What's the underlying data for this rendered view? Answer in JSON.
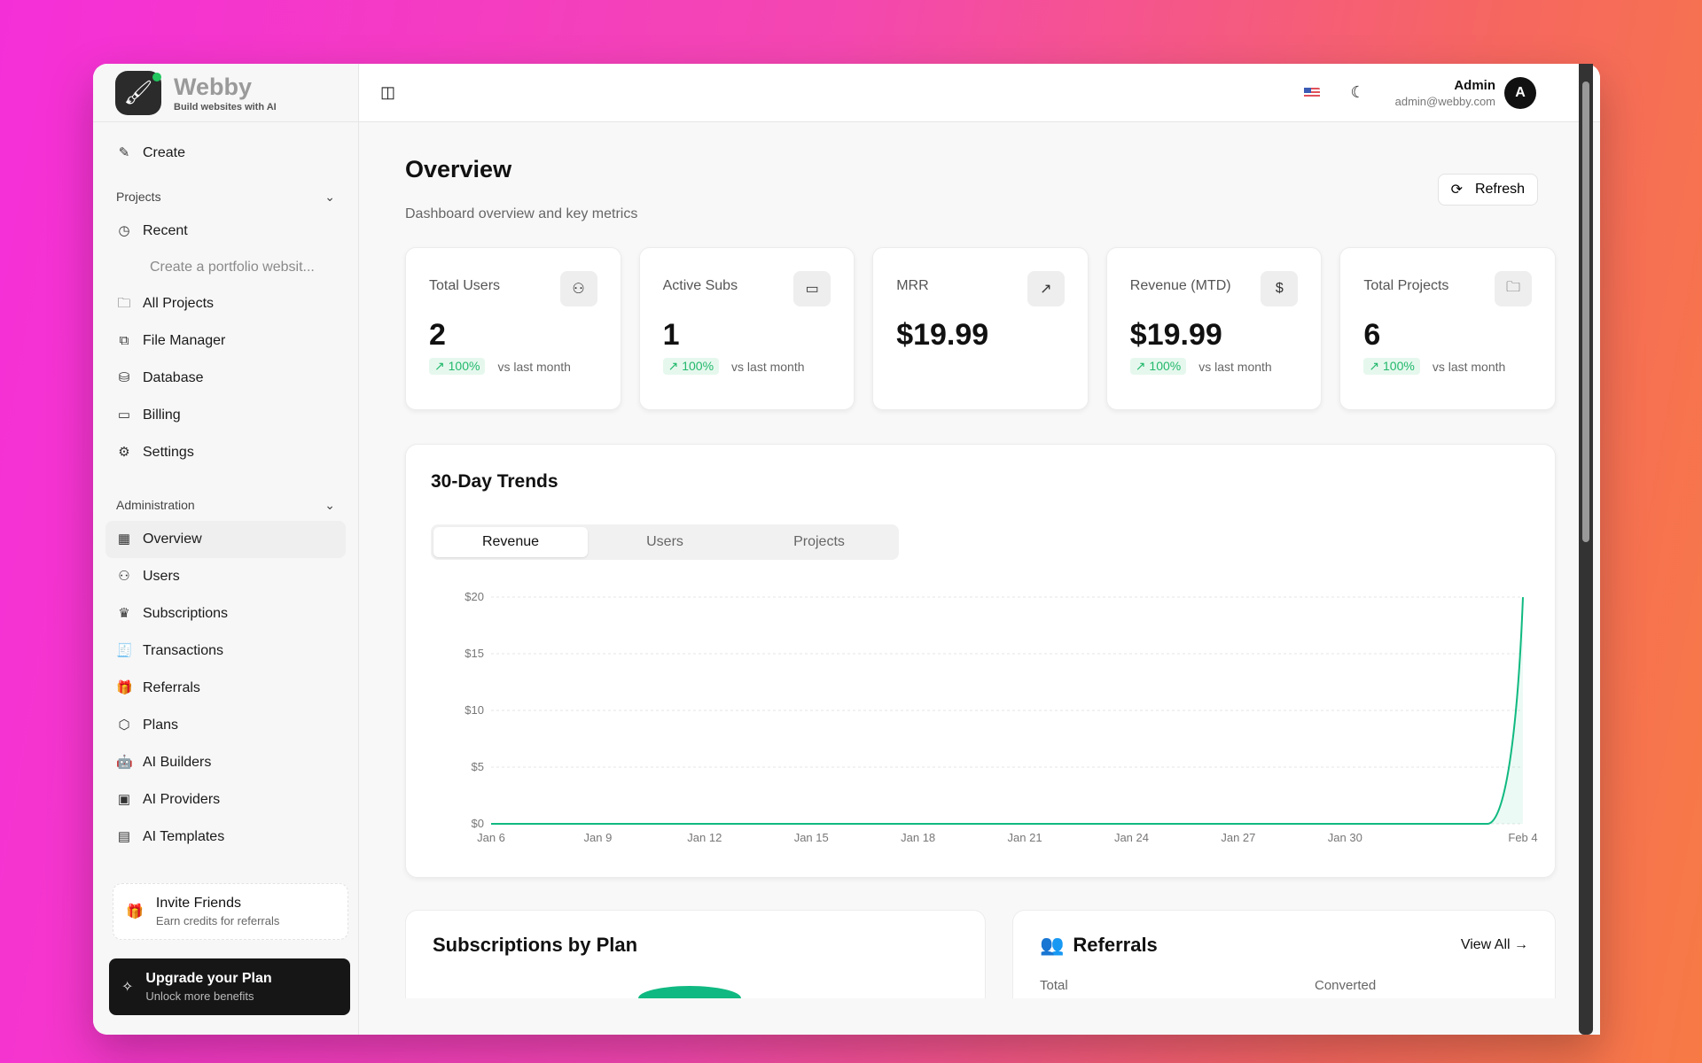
{
  "brand": {
    "name": "Webby",
    "tagline": "Build websites with AI"
  },
  "sidebar": {
    "create": "Create",
    "projects_section": "Projects",
    "recent": "Recent",
    "recent_items": [
      "Create a portfolio websit..."
    ],
    "project_items": [
      {
        "label": "All Projects",
        "icon": "folder-open"
      },
      {
        "label": "File Manager",
        "icon": "files"
      },
      {
        "label": "Database",
        "icon": "database"
      },
      {
        "label": "Billing",
        "icon": "credit-card"
      },
      {
        "label": "Settings",
        "icon": "gear"
      }
    ],
    "admin_section": "Administration",
    "admin_items": [
      {
        "label": "Overview",
        "icon": "grid",
        "active": true
      },
      {
        "label": "Users",
        "icon": "users"
      },
      {
        "label": "Subscriptions",
        "icon": "crown"
      },
      {
        "label": "Transactions",
        "icon": "receipt"
      },
      {
        "label": "Referrals",
        "icon": "gift"
      },
      {
        "label": "Plans",
        "icon": "package"
      },
      {
        "label": "AI Builders",
        "icon": "bot"
      },
      {
        "label": "AI Providers",
        "icon": "cpu"
      },
      {
        "label": "AI Templates",
        "icon": "layout-template"
      }
    ],
    "invite": {
      "title": "Invite Friends",
      "subtitle": "Earn credits for referrals"
    },
    "upgrade": {
      "title": "Upgrade your Plan",
      "subtitle": "Unlock more benefits"
    }
  },
  "header": {
    "user_name": "Admin",
    "user_email": "admin@webby.com",
    "avatar": "A"
  },
  "page": {
    "title": "Overview",
    "description": "Dashboard overview and key metrics",
    "refresh": "Refresh"
  },
  "stats": [
    {
      "label": "Total Users",
      "value": "2",
      "change": "100%",
      "note": "vs last month",
      "icon": "users"
    },
    {
      "label": "Active Subs",
      "value": "1",
      "change": "100%",
      "note": "vs last month",
      "icon": "credit-card"
    },
    {
      "label": "MRR",
      "value": "$19.99",
      "icon": "trending-up"
    },
    {
      "label": "Revenue (MTD)",
      "value": "$19.99",
      "change": "100%",
      "note": "vs last month",
      "icon": "dollar"
    },
    {
      "label": "Total Projects",
      "value": "6",
      "change": "100%",
      "note": "vs last month",
      "icon": "folder"
    }
  ],
  "trends": {
    "title": "30-Day Trends",
    "tabs": [
      "Revenue",
      "Users",
      "Projects"
    ],
    "active_tab": "Revenue"
  },
  "chart_data": {
    "type": "area",
    "x": [
      "Jan 6",
      "Jan 7",
      "Jan 8",
      "Jan 9",
      "Jan 10",
      "Jan 11",
      "Jan 12",
      "Jan 13",
      "Jan 14",
      "Jan 15",
      "Jan 16",
      "Jan 17",
      "Jan 18",
      "Jan 19",
      "Jan 20",
      "Jan 21",
      "Jan 22",
      "Jan 23",
      "Jan 24",
      "Jan 25",
      "Jan 26",
      "Jan 27",
      "Jan 28",
      "Jan 29",
      "Jan 30",
      "Jan 31",
      "Feb 1",
      "Feb 2",
      "Feb 3",
      "Feb 4"
    ],
    "values": [
      0,
      0,
      0,
      0,
      0,
      0,
      0,
      0,
      0,
      0,
      0,
      0,
      0,
      0,
      0,
      0,
      0,
      0,
      0,
      0,
      0,
      0,
      0,
      0,
      0,
      0,
      0,
      0,
      0,
      19.99
    ],
    "x_ticks": [
      "Jan 6",
      "Jan 9",
      "Jan 12",
      "Jan 15",
      "Jan 18",
      "Jan 21",
      "Jan 24",
      "Jan 27",
      "Jan 30",
      "Feb 4"
    ],
    "y_ticks": [
      "$0",
      "$5",
      "$10",
      "$15",
      "$20"
    ],
    "ylim": [
      0,
      20
    ],
    "grid": true,
    "color": "#10b981"
  },
  "subscriptions": {
    "title": "Subscriptions by Plan"
  },
  "referrals": {
    "title": "Referrals",
    "view_all": "View All",
    "cols": [
      "Total",
      "Converted"
    ]
  }
}
